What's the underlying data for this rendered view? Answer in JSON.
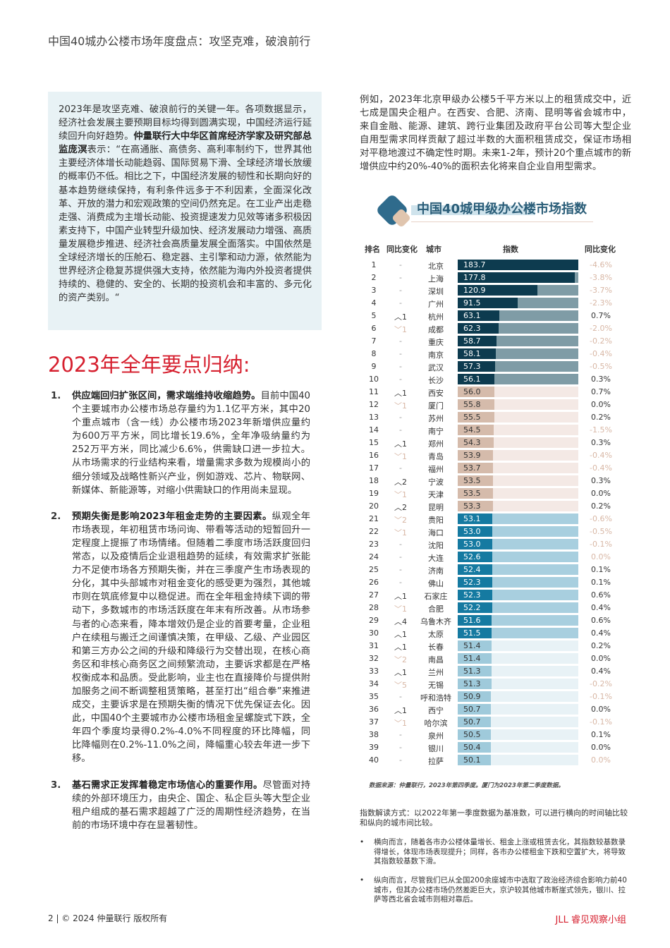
{
  "header": {
    "title": "中国40城办公楼市场年度盘点：攻坚克难，破浪前行"
  },
  "quote": {
    "p1": "2023年是攻坚克难、破浪前行的关键一年。各项数据显示，经济社会发展主要预期目标均得到圆满实现，中国经济运行延续回升向好趋势。",
    "speaker": "仲量联行大中华区首席经济学家及研究部总监庞溟",
    "p2": "表示：“在高通胀、高债务、高利率制约下，世界其他主要经济体增长动能趋弱、国际贸易下滑、全球经济增长放缓的概率仍不低。相比之下，中国经济发展的韧性和长期向好的基本趋势继续保持，有利条件远多于不利因素，全面深化改革、开放的潜力和宏观政策的空间仍然充足。在工业产出走稳走强、消费成为主增长动能、投资提速发力见效等诸多积极因素支持下，中国产业转型升级加快、经济发展动力增强、高质量发展稳步推进、经济社会高质量发展全面落实。中国依然是全球经济增长的压舱石、稳定器、主引擎和动力源，依然能为世界经济企稳复苏提供强大支持，依然能为海内外投资者提供持续的、稳健的、安全的、长期的投资机会和丰富的、多元化的资产类别。“"
  },
  "section_title": "2023年全年要点归纳:",
  "points": [
    {
      "num": "1.",
      "bold": "供应端回归扩张区间，需求端维持收缩趋势。",
      "text": "目前中国40个主要城市办公楼市场总存量约为1.1亿平方米，其中20个重点城市（含一线）办公楼市场2023年新增供应量约为600万平方米，同比增长19.6%，全年净吸纳量约为252万平方米，同比减少6.6%，供需缺口进一步拉大。从市场需求的行业结构来看，增量需求多数为规模尚小的细分领域及战略性新兴产业，例如游戏、芯片、物联网、新媒体、新能源等，对缩小供需缺口的作用尚未显现。"
    },
    {
      "num": "2.",
      "bold": "预期失衡是影响2023年租金走势的主要因素。",
      "text": "纵观全年市场表现，年初租赁市场问询、带看等活动的短暂回升一定程度上提振了市场情绪。但随着二季度市场活跃度回归常态，以及疫情后企业退租趋势的延续，有效需求扩张能力不足使市场各方预期失衡，并在三季度产生市场表现的分化，其中头部城市对租金变化的感受更为强烈，其他城市则在筑底修复中以稳促进。而在全年租金持续下调的带动下，多数城市的市场活跃度在年末有所改善。从市场参与者的心态来看，降本增效仍是企业的首要考量，企业租户在续租与搬迁之间谨慎决策，在甲级、乙级、产业园区和第三方办公之间的升级和降级行为交替出现，在核心商务区和非核心商务区之间频繁流动，主要诉求都是在严格权衡成本和品质。受此影响，业主也在直接降价与提供附加服务之间不断调整租赁策略，甚至打出“组合拳”来推进成交，主要诉求是在预期失衡的情况下优先保证去化。因此，中国40个主要城市办公楼市场租金呈螺旋式下跌，全年四个季度均录得0.2%-4.0%不同程度的环比降幅，同比降幅则在0.2%-11.0%之间，降幅重心较去年进一步下移。"
    },
    {
      "num": "3.",
      "bold": "基石需求正发挥着稳定市场信心的重要作用。",
      "text": "尽管面对持续的外部环境压力，由央企、国企、私企巨头等大型企业租户组成的基石需求超越了广泛的周期性经济趋势，在当前的市场环境中存在显著韧性。"
    }
  ],
  "right_text": "例如，2023年北京甲级办公楼5千平方米以上的租赁成交中，近七成是国央企租户。在西安、合肥、济南、昆明等省会城市中，来自金融、能源、建筑、跨行业集团及政府平台公司等大型企业自用型需求同样贡献了超过半数的大面积租赁成交，保证市场相对平稳地渡过不确定性时期。未来1-2年，预计20个重点城市的新增供应中约20%-40%的面积去化将来自企业自用型需求。",
  "index_table": {
    "title": "中国40城甲级办公楼市场指数",
    "headers": {
      "rank": "排名",
      "rank_change": "同比变化",
      "city": "城市",
      "index": "指数",
      "yoy": "同比变化"
    },
    "max_index": 183.7,
    "tier_colors": [
      {
        "fill": "#0d3b4f",
        "track": "#7f9ca6",
        "text": "#ffffff"
      },
      {
        "fill": "#d5bbab",
        "track": "#f4e9e5",
        "text": "#333333"
      },
      {
        "fill": "#157aa1",
        "track": "#a8cfdf",
        "text": "#ffffff"
      },
      {
        "fill": "#9fcadb",
        "track": "#e8f2f6",
        "text": "#333333"
      }
    ],
    "negative_color": "#d8b7a5",
    "up_color": "#333333",
    "down_color": "#d8b7a5",
    "rows": [
      [
        "1",
        "-",
        "北京",
        "183.7",
        "-4.6%"
      ],
      [
        "2",
        "-",
        "上海",
        "177.8",
        "-3.8%"
      ],
      [
        "3",
        "-",
        "深圳",
        "120.9",
        "-3.7%"
      ],
      [
        "4",
        "-",
        "广州",
        "91.5",
        "-2.3%"
      ],
      [
        "5",
        "︿1",
        "杭州",
        "63.1",
        "0.7%"
      ],
      [
        "6",
        "﹀1",
        "成都",
        "62.3",
        "-2.0%"
      ],
      [
        "7",
        "-",
        "重庆",
        "58.7",
        "-0.2%"
      ],
      [
        "8",
        "-",
        "南京",
        "58.1",
        "-0.4%"
      ],
      [
        "9",
        "-",
        "武汉",
        "57.3",
        "-0.5%"
      ],
      [
        "10",
        "-",
        "长沙",
        "56.1",
        "0.3%"
      ],
      [
        "11",
        "︿1",
        "西安",
        "56.0",
        "0.7%"
      ],
      [
        "12",
        "﹀1",
        "厦门",
        "55.8",
        "0.0%"
      ],
      [
        "13",
        "-",
        "苏州",
        "55.5",
        "0.2%"
      ],
      [
        "14",
        "-",
        "南宁",
        "54.5",
        "-1.5%"
      ],
      [
        "15",
        "︿1",
        "郑州",
        "54.3",
        "0.3%"
      ],
      [
        "16",
        "﹀1",
        "青岛",
        "53.9",
        "-0.4%"
      ],
      [
        "17",
        "-",
        "福州",
        "53.7",
        "-0.4%"
      ],
      [
        "18",
        "︿2",
        "宁波",
        "53.5",
        "0.3%"
      ],
      [
        "19",
        "﹀1",
        "天津",
        "53.5",
        "0.0%"
      ],
      [
        "20",
        "︿2",
        "昆明",
        "53.3",
        "0.2%"
      ],
      [
        "21",
        "﹀2",
        "贵阳",
        "53.1",
        "-0.6%"
      ],
      [
        "22",
        "﹀1",
        "海口",
        "53.0",
        "-0.5%"
      ],
      [
        "23",
        "-",
        "沈阳",
        "53.0",
        "-0.1%"
      ],
      [
        "24",
        "-",
        "大连",
        "52.6",
        "0.0%"
      ],
      [
        "25",
        "-",
        "济南",
        "52.4",
        "0.1%"
      ],
      [
        "26",
        "-",
        "佛山",
        "52.3",
        "0.1%"
      ],
      [
        "27",
        "︿1",
        "石家庄",
        "52.3",
        "0.6%"
      ],
      [
        "28",
        "﹀1",
        "合肥",
        "52.2",
        "0.4%"
      ],
      [
        "29",
        "︿4",
        "乌鲁木齐",
        "51.6",
        "0.6%"
      ],
      [
        "30",
        "︿1",
        "太原",
        "51.5",
        "0.4%"
      ],
      [
        "31",
        "︿1",
        "长春",
        "51.4",
        "0.2%"
      ],
      [
        "32",
        "﹀2",
        "南昌",
        "51.4",
        "0.0%"
      ],
      [
        "33",
        "︿1",
        "兰州",
        "51.3",
        "0.4%"
      ],
      [
        "34",
        "﹀5",
        "无锡",
        "51.3",
        "-0.2%"
      ],
      [
        "35",
        "-",
        "呼和浩特",
        "50.9",
        "-0.1%"
      ],
      [
        "36",
        "︿1",
        "西宁",
        "50.7",
        "0.0%"
      ],
      [
        "37",
        "﹀1",
        "哈尔滨",
        "50.7",
        "-0.1%"
      ],
      [
        "38",
        "-",
        "泉州",
        "50.5",
        "0.1%"
      ],
      [
        "39",
        "-",
        "银川",
        "50.4",
        "0.0%"
      ],
      [
        "40",
        "-",
        "拉萨",
        "50.1",
        "0.0%"
      ]
    ],
    "light_pct_rows": [
      "24",
      "40"
    ],
    "source": "数据来源：仲量联行，2023年第四季度。厦门为2023年第二季度数据。"
  },
  "note": "指数解读方式：以2022年第一季度数据为基准数，可以进行横向的时间轴比较和纵向的城市间比较。",
  "bullets": [
    "横向而言，随着各市办公楼体量增长、租金上涨或租赁去化，其指数较基数录得增长，体现市场表现提升；同样，各市办公楼租金下跌和空置扩大，将导致其指数较基数下滑。",
    "纵向而言，尽管我们已从全国200余座城市中选取了政治经济综合影响力前40城市，但其办公楼市场仍然差距巨大，京沪较其他城市断崖式领先，银川、拉萨等西北省会城市则相对靠后。"
  ],
  "footer": {
    "left": "2 | © 2024 仲量联行 版权所有",
    "right": "JLL 睿见观察小组"
  }
}
